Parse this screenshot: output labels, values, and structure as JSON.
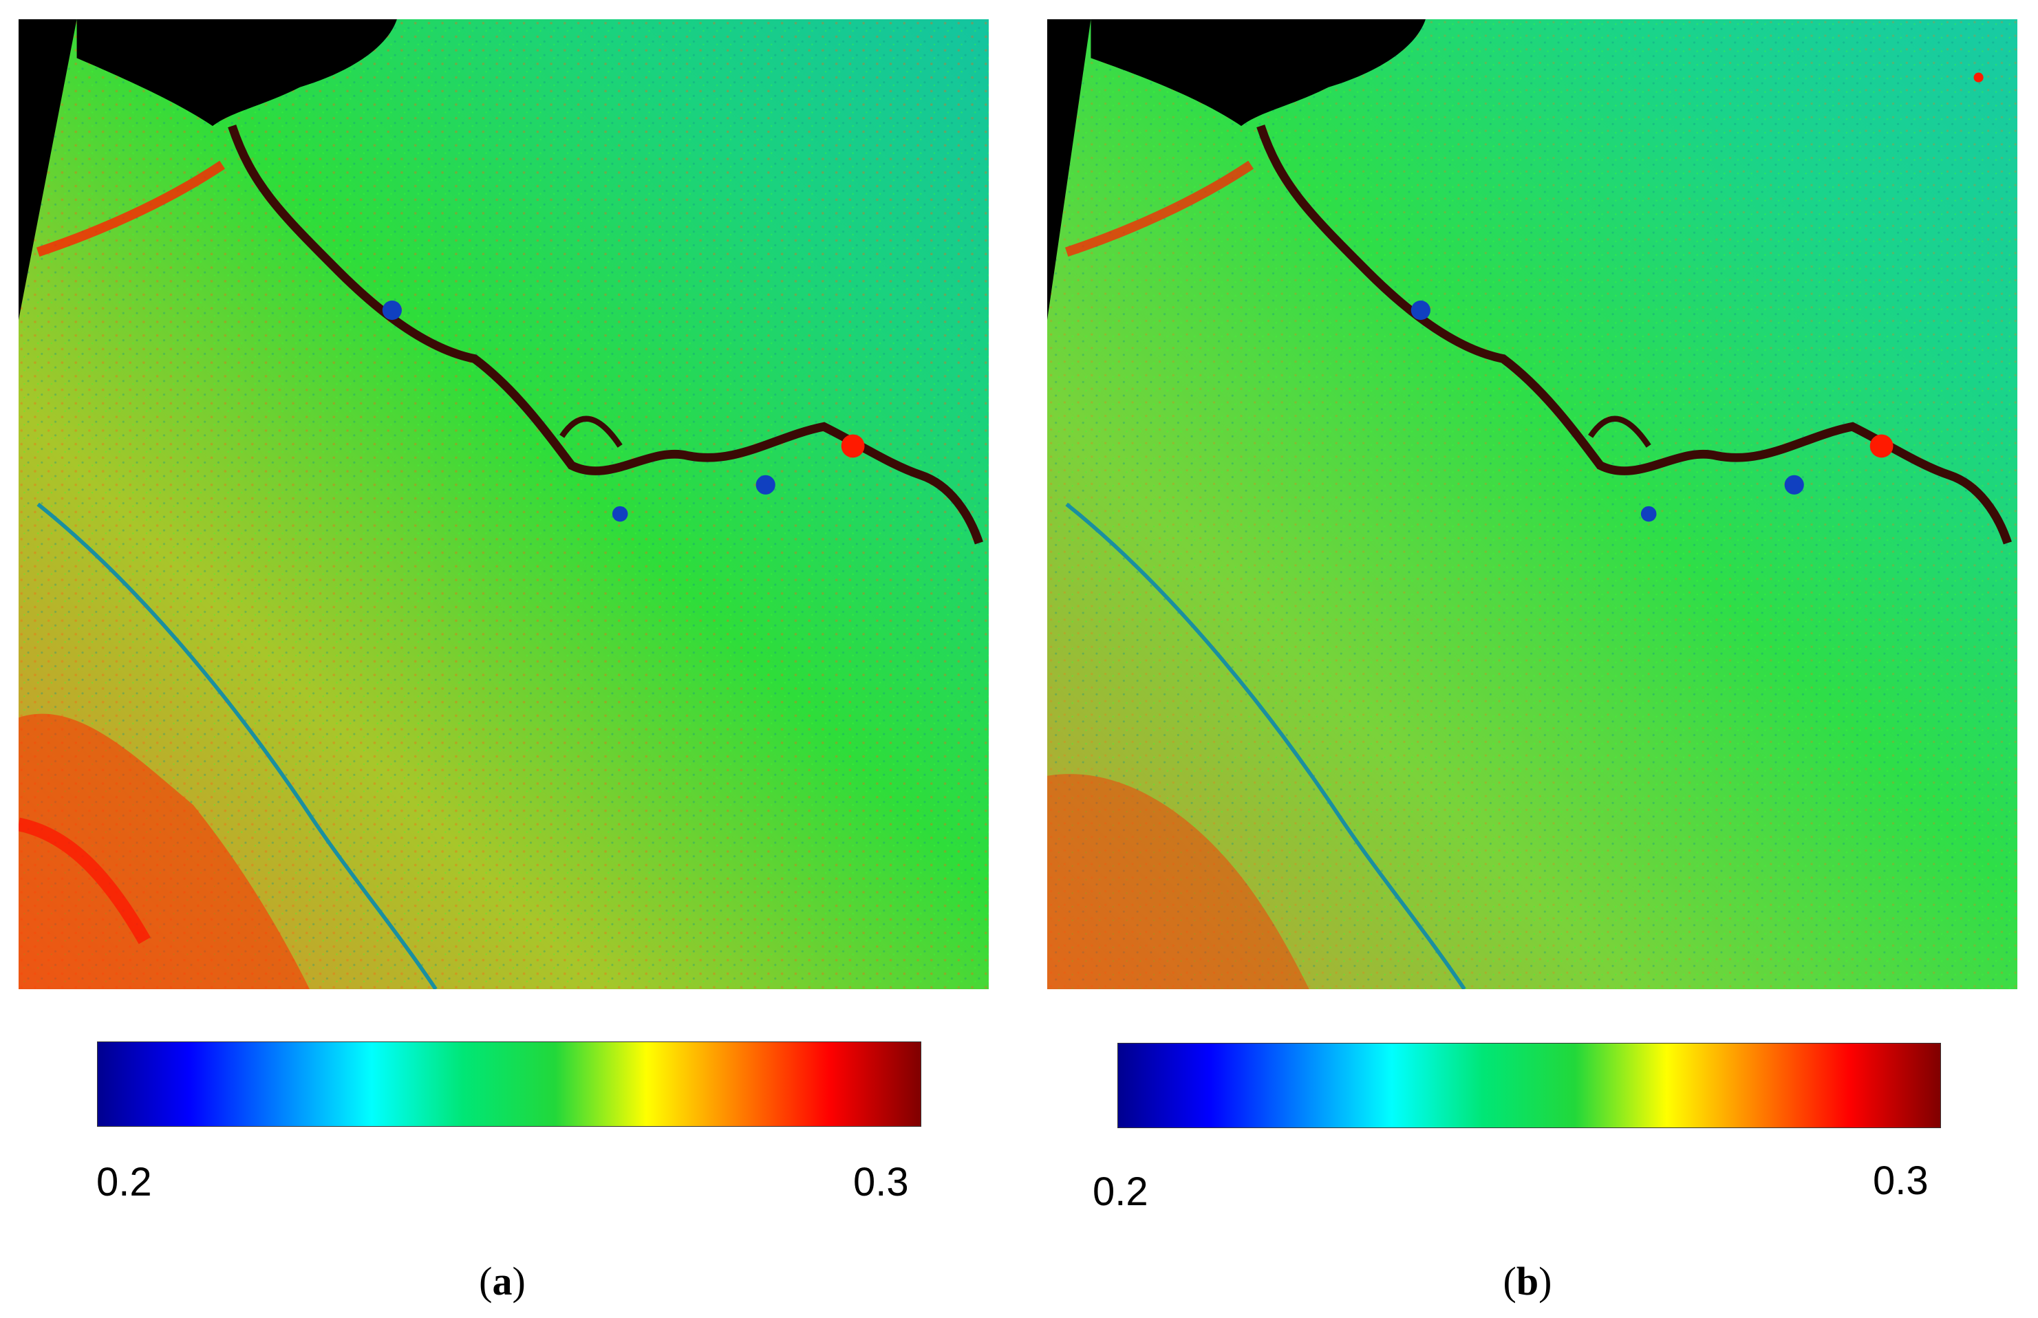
{
  "colormap": {
    "name": "jet",
    "stops": [
      "#00008f",
      "#0000ff",
      "#0080ff",
      "#00ffff",
      "#00e676",
      "#22d83a",
      "#ffff00",
      "#ff8000",
      "#ff0000",
      "#800000"
    ]
  },
  "map_colors": {
    "background": "#2ed645",
    "land_main": "#22dd44",
    "land_east": "#18cf8a",
    "land_southwest": "#d8a83a",
    "hotspot": "#ff1a00",
    "river": "#3a0a05",
    "nodata": "#000000",
    "water_blue": "#1040c0"
  },
  "panels": [
    {
      "id": "a",
      "caption_open": "(",
      "caption_letter": "a",
      "caption_close": ")",
      "colorbar_min": "0.2",
      "colorbar_max": "0.3"
    },
    {
      "id": "b",
      "caption_open": "(",
      "caption_letter": "b",
      "caption_close": ")",
      "colorbar_min": "0.2",
      "colorbar_max": "0.3"
    }
  ]
}
